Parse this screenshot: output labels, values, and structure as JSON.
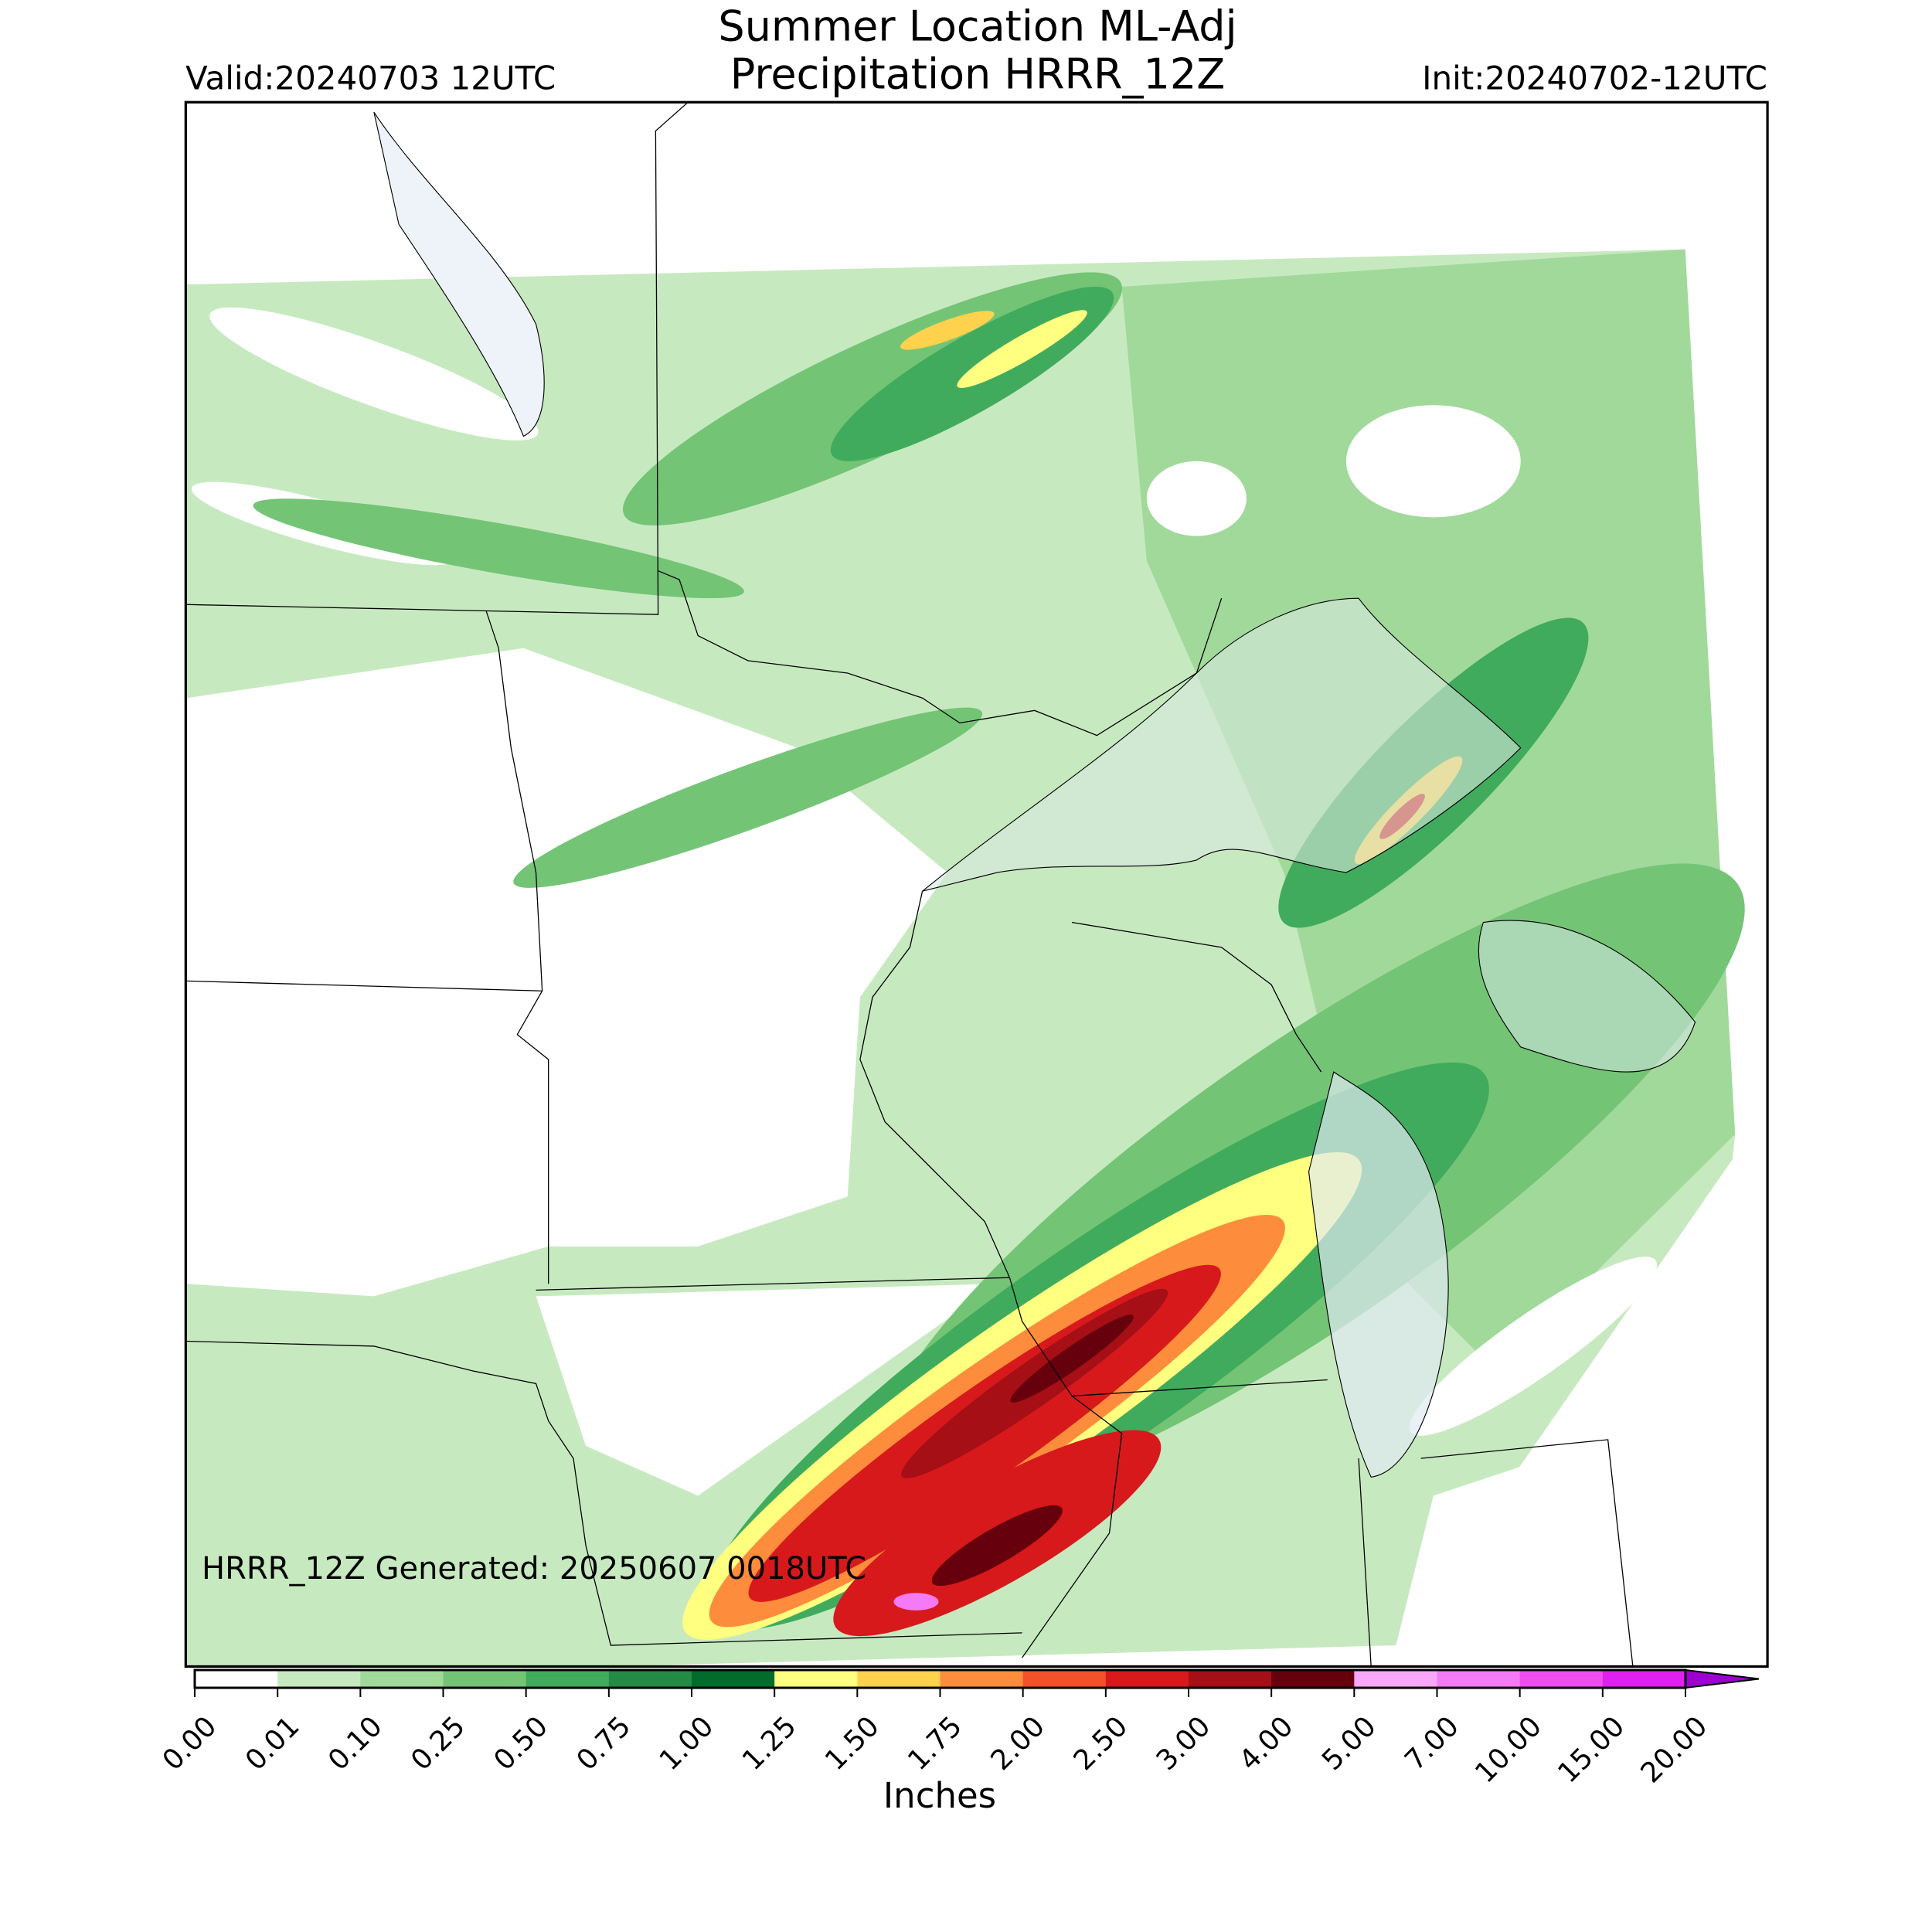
{
  "header": {
    "title_line1": "Summer Location ML-Adj",
    "title_line2": "Precipitation HRRR_12Z",
    "valid": "Valid:20240703 12UTC",
    "init": "Init:20240702-12UTC"
  },
  "map": {
    "footnote": "HRRR_12Z Generated: 20250607 0018UTC"
  },
  "colorbar": {
    "label": "Inches",
    "ticks": [
      {
        "value": 0,
        "label": "0.00"
      },
      {
        "value": 0.01,
        "label": "0.01"
      },
      {
        "value": 0.1,
        "label": "0.10"
      },
      {
        "value": 0.25,
        "label": "0.25"
      },
      {
        "value": 0.5,
        "label": "0.50"
      },
      {
        "value": 0.75,
        "label": "0.75"
      },
      {
        "value": 1,
        "label": "1.00"
      },
      {
        "value": 1.25,
        "label": "1.25"
      },
      {
        "value": 1.5,
        "label": "1.50"
      },
      {
        "value": 1.75,
        "label": "1.75"
      },
      {
        "value": 2,
        "label": "2.00"
      },
      {
        "value": 2.5,
        "label": "2.50"
      },
      {
        "value": 3,
        "label": "3.00"
      },
      {
        "value": 4,
        "label": "4.00"
      },
      {
        "value": 5,
        "label": "5.00"
      },
      {
        "value": 7,
        "label": "7.00"
      },
      {
        "value": 10,
        "label": "10.00"
      },
      {
        "value": 15,
        "label": "15.00"
      },
      {
        "value": 20,
        "label": "20.00"
      }
    ],
    "colors": [
      "#ffffff",
      "#c7e9c0",
      "#a1d99b",
      "#74c476",
      "#41ab5d",
      "#238b45",
      "#006d2c",
      "#ffff80",
      "#ffd24d",
      "#fd8d3c",
      "#f4502a",
      "#d7191c",
      "#a50f15",
      "#67000d",
      "#f9a8f9",
      "#f57af5",
      "#f04df0",
      "#e020f0",
      "#9b00d0"
    ],
    "extend": "max"
  }
}
